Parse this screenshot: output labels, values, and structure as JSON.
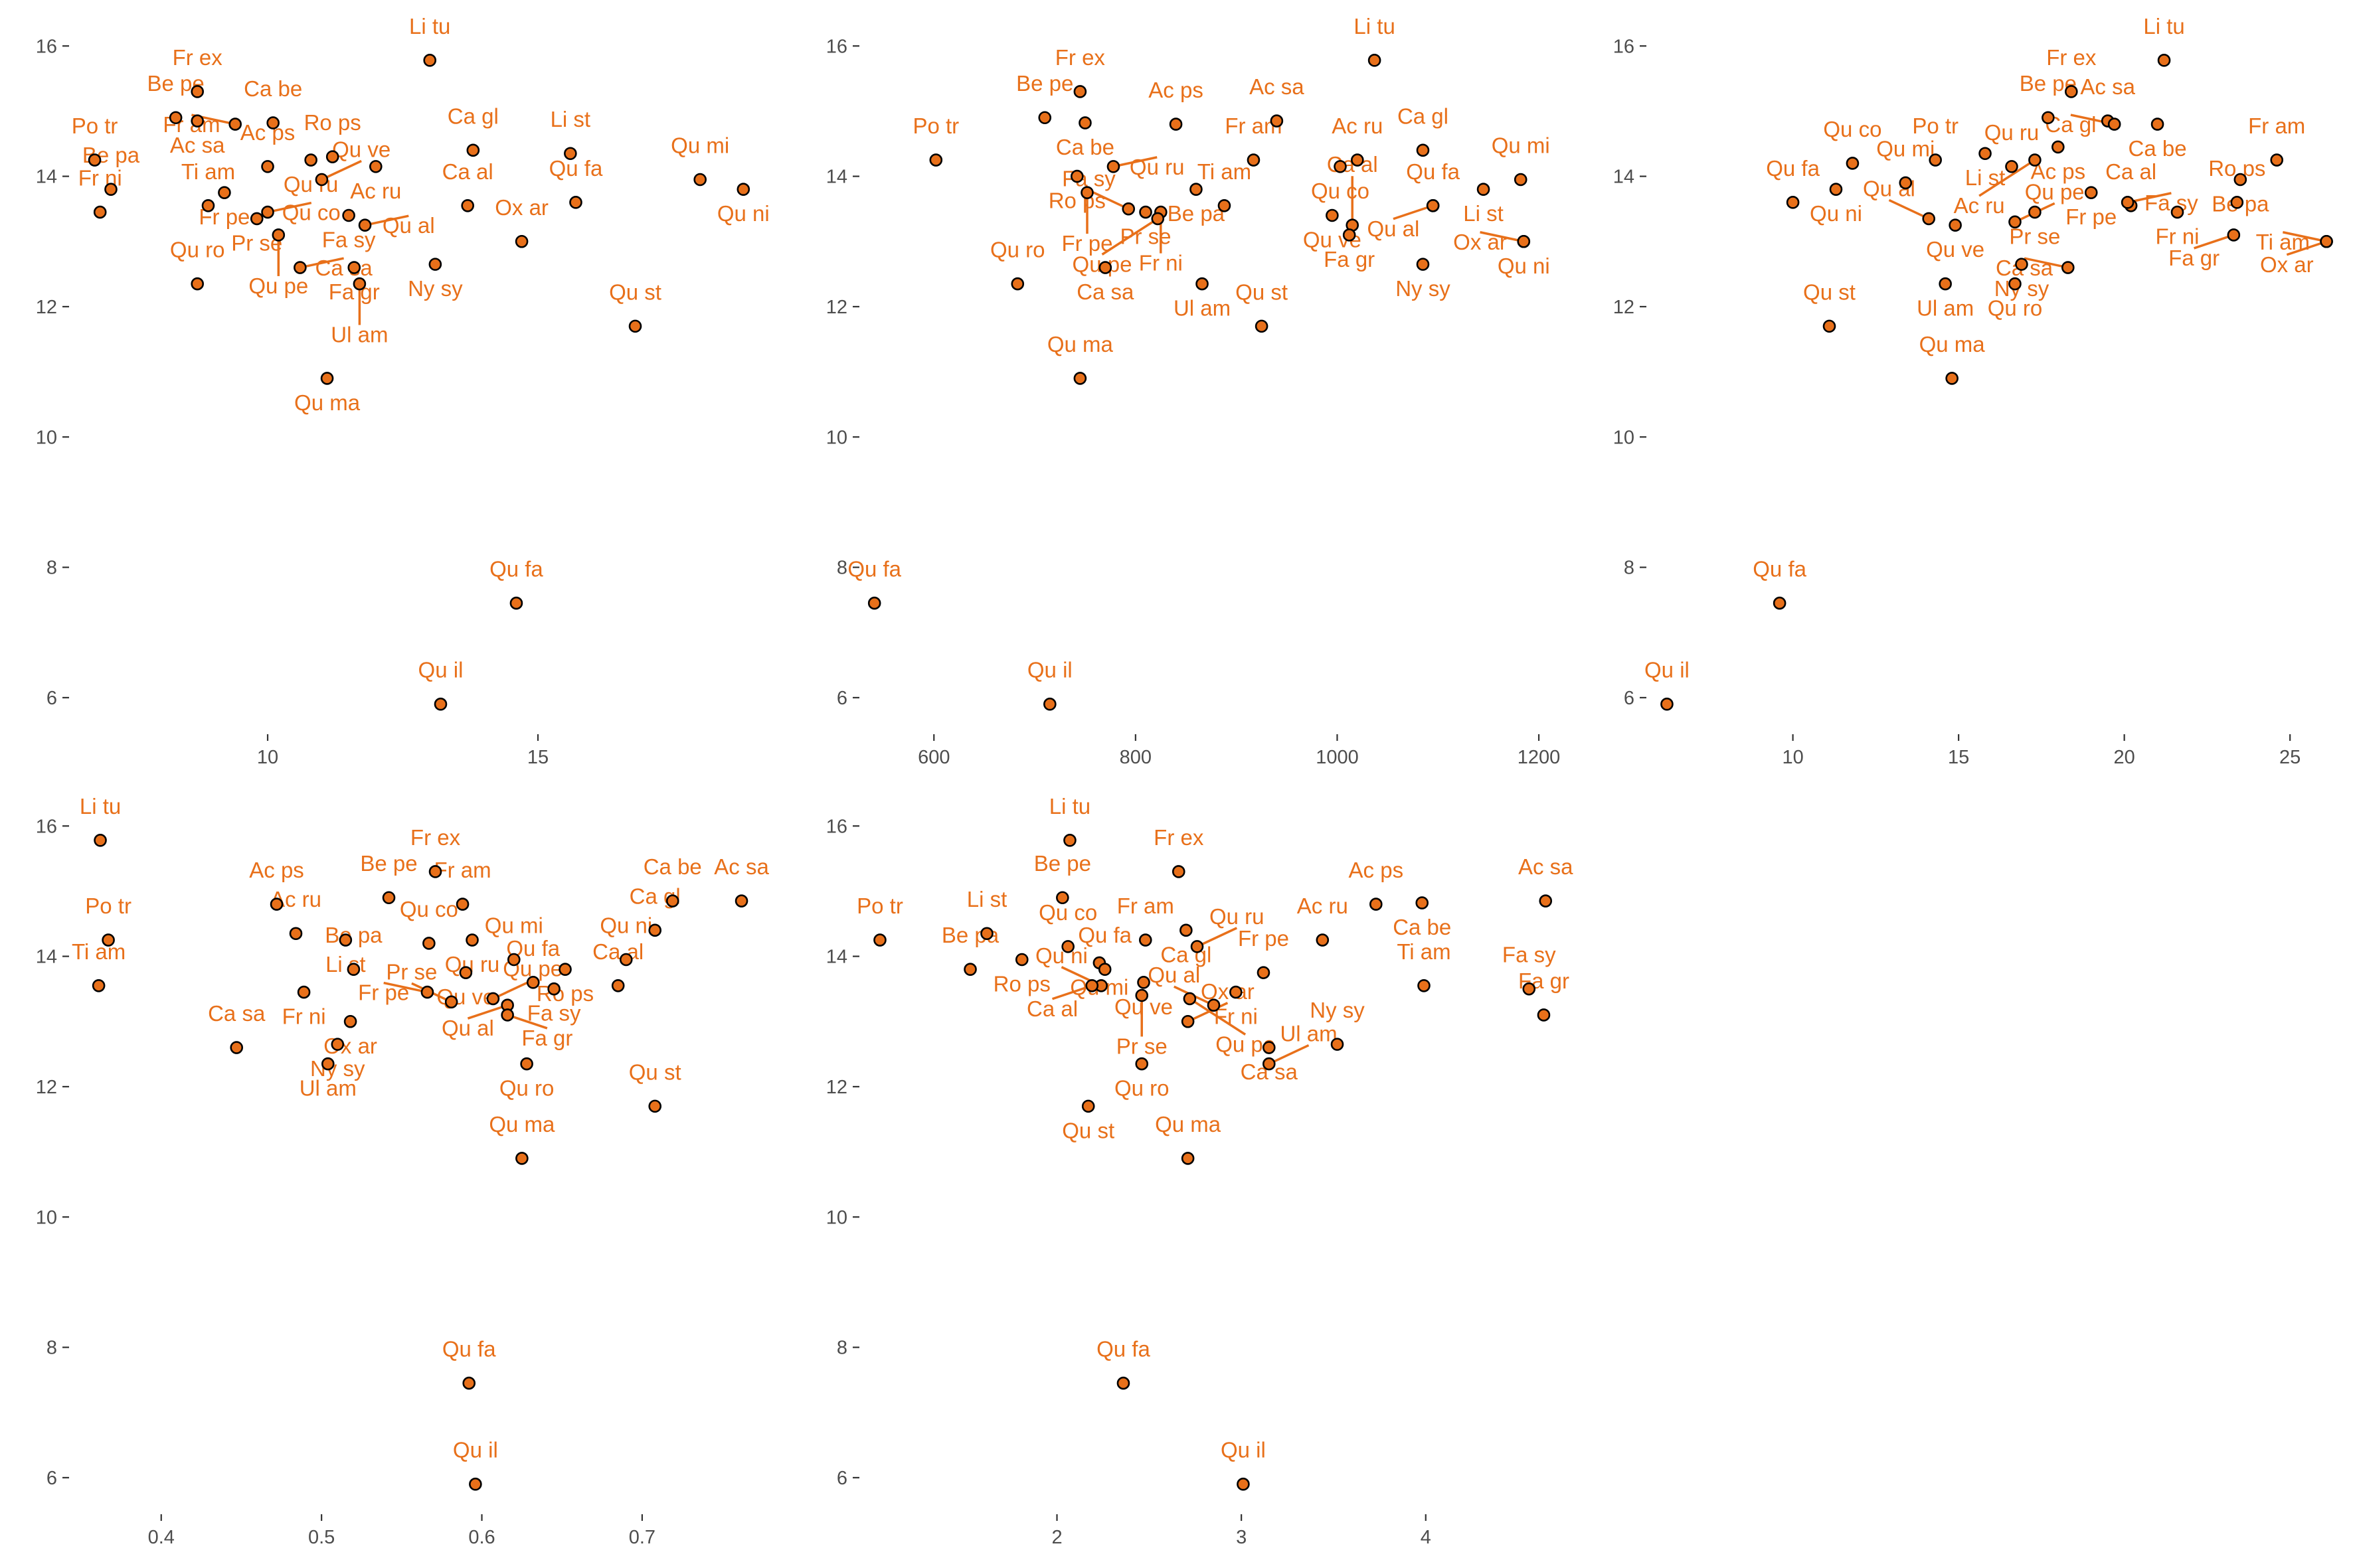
{
  "colors": {
    "point_fill": "#e8701a",
    "point_stroke": "#000000",
    "label": "#e8701a",
    "axis_text": "#4d4d4d",
    "background": "#ffffff"
  },
  "chart_data": [
    {
      "type": "scatter",
      "title": "",
      "xlabel": "",
      "ylabel": "",
      "xlim": [
        6.4,
        19.3
      ],
      "ylim": [
        5.5,
        16.4
      ],
      "xticks": [
        10,
        15
      ],
      "yticks": [
        6,
        8,
        10,
        12,
        14,
        16
      ],
      "points": [
        {
          "label": "Li tu",
          "x": 13.0,
          "y": 15.78
        },
        {
          "label": "Fr ex",
          "x": 8.7,
          "y": 15.3
        },
        {
          "label": "Ca be",
          "x": 10.1,
          "y": 14.82
        },
        {
          "label": "Be pe",
          "x": 8.3,
          "y": 14.9
        },
        {
          "label": "Ac sa",
          "x": 8.7,
          "y": 14.85
        },
        {
          "label": "Fr am",
          "x": 9.4,
          "y": 14.8
        },
        {
          "label": "Po tr",
          "x": 6.8,
          "y": 14.25
        },
        {
          "label": "Ca gl",
          "x": 13.8,
          "y": 14.4
        },
        {
          "label": "Li st",
          "x": 15.6,
          "y": 14.35
        },
        {
          "label": "Qu mi",
          "x": 18.0,
          "y": 13.95
        },
        {
          "label": "Qu ni",
          "x": 18.8,
          "y": 13.8
        },
        {
          "label": "Qu fa",
          "x": 15.7,
          "y": 13.6
        },
        {
          "label": "Be pa",
          "x": 7.1,
          "y": 13.8
        },
        {
          "label": "Fr ni",
          "x": 6.9,
          "y": 13.45
        },
        {
          "label": "Ac ps",
          "x": 10.0,
          "y": 14.15
        },
        {
          "label": "Qu ru",
          "x": 10.8,
          "y": 14.25
        },
        {
          "label": "Ro ps",
          "x": 11.2,
          "y": 14.3
        },
        {
          "label": "Ac ru",
          "x": 12.0,
          "y": 14.15
        },
        {
          "label": "Fr pe",
          "x": 9.2,
          "y": 13.75
        },
        {
          "label": "Pr se",
          "x": 9.8,
          "y": 13.35
        },
        {
          "label": "Ti am",
          "x": 8.9,
          "y": 13.55
        },
        {
          "label": "Qu co",
          "x": 10.0,
          "y": 13.45
        },
        {
          "label": "Qu ve",
          "x": 11.0,
          "y": 13.95
        },
        {
          "label": "Fa sy",
          "x": 11.5,
          "y": 13.4
        },
        {
          "label": "Qu al",
          "x": 11.8,
          "y": 13.25
        },
        {
          "label": "Ca al",
          "x": 13.7,
          "y": 13.55
        },
        {
          "label": "Qu pe",
          "x": 10.2,
          "y": 13.1
        },
        {
          "label": "Ox ar",
          "x": 14.7,
          "y": 13.0
        },
        {
          "label": "Fa gr",
          "x": 11.6,
          "y": 12.6
        },
        {
          "label": "Ca sa",
          "x": 10.6,
          "y": 12.6
        },
        {
          "label": "Ny sy",
          "x": 13.1,
          "y": 12.65
        },
        {
          "label": "Qu ro",
          "x": 8.7,
          "y": 12.35
        },
        {
          "label": "Ul am",
          "x": 11.7,
          "y": 12.35
        },
        {
          "label": "Qu st",
          "x": 16.8,
          "y": 11.7
        },
        {
          "label": "Qu ma",
          "x": 11.1,
          "y": 10.9
        },
        {
          "label": "Qu fa",
          "x": 14.6,
          "y": 7.45
        },
        {
          "label": "Qu il",
          "x": 13.2,
          "y": 5.9
        }
      ]
    },
    {
      "type": "scatter",
      "title": "",
      "xlabel": "",
      "ylabel": "",
      "xlim": [
        530,
        1225
      ],
      "ylim": [
        5.5,
        16.4
      ],
      "xticks": [
        600,
        800,
        1000,
        1200
      ],
      "yticks": [
        6,
        8,
        10,
        12,
        14,
        16
      ],
      "points": [
        {
          "label": "Li tu",
          "x": 1037,
          "y": 15.78
        },
        {
          "label": "Fr ex",
          "x": 745,
          "y": 15.3
        },
        {
          "label": "Ca gl",
          "x": 1085,
          "y": 14.4
        },
        {
          "label": "Ac sa",
          "x": 940,
          "y": 14.85
        },
        {
          "label": "Ac ps",
          "x": 840,
          "y": 14.8
        },
        {
          "label": "Be pe",
          "x": 710,
          "y": 14.9
        },
        {
          "label": "Ca be",
          "x": 750,
          "y": 14.82
        },
        {
          "label": "Qu mi",
          "x": 1182,
          "y": 13.95
        },
        {
          "label": "Po tr",
          "x": 602,
          "y": 14.25
        },
        {
          "label": "Ro ps",
          "x": 742,
          "y": 14.0
        },
        {
          "label": "Qu ru",
          "x": 778,
          "y": 14.15
        },
        {
          "label": "Fr am",
          "x": 917,
          "y": 14.25
        },
        {
          "label": "Ac ru",
          "x": 1020,
          "y": 14.25
        },
        {
          "label": "Li st",
          "x": 1145,
          "y": 13.8
        },
        {
          "label": "Qu fa",
          "x": 1095,
          "y": 13.55
        },
        {
          "label": "Be pa",
          "x": 860,
          "y": 13.8
        },
        {
          "label": "Qu co",
          "x": 1003,
          "y": 14.15
        },
        {
          "label": "Fr pe",
          "x": 752,
          "y": 13.75
        },
        {
          "label": "Fa sy",
          "x": 793,
          "y": 13.5
        },
        {
          "label": "Qu al",
          "x": 1095,
          "y": 13.55
        },
        {
          "label": "Qu ni",
          "x": 1185,
          "y": 13.0
        },
        {
          "label": "Pr se",
          "x": 810,
          "y": 13.45
        },
        {
          "label": "Fr ni",
          "x": 825,
          "y": 13.45
        },
        {
          "label": "Qu ve",
          "x": 995,
          "y": 13.4
        },
        {
          "label": "Ti am",
          "x": 888,
          "y": 13.55
        },
        {
          "label": "Ca al",
          "x": 1015,
          "y": 13.25
        },
        {
          "label": "Qu pe",
          "x": 822,
          "y": 13.35
        },
        {
          "label": "Fa gr",
          "x": 1012,
          "y": 13.1
        },
        {
          "label": "Ny sy",
          "x": 1085,
          "y": 12.65
        },
        {
          "label": "Ox ar",
          "x": 1185,
          "y": 13.0
        },
        {
          "label": "Ca sa",
          "x": 770,
          "y": 12.6
        },
        {
          "label": "Qu ro",
          "x": 683,
          "y": 12.35
        },
        {
          "label": "Ul am",
          "x": 866,
          "y": 12.35
        },
        {
          "label": "Qu st",
          "x": 925,
          "y": 11.7
        },
        {
          "label": "Qu ma",
          "x": 745,
          "y": 10.9
        },
        {
          "label": "Qu fa",
          "x": 541,
          "y": 7.45
        },
        {
          "label": "Qu il",
          "x": 715,
          "y": 5.9
        }
      ]
    },
    {
      "type": "scatter",
      "title": "",
      "xlabel": "",
      "ylabel": "",
      "xlim": [
        5.7,
        26.9
      ],
      "ylim": [
        5.5,
        16.4
      ],
      "xticks": [
        10,
        15,
        20,
        25
      ],
      "yticks": [
        6,
        8,
        10,
        12,
        14,
        16
      ],
      "points": [
        {
          "label": "Li tu",
          "x": 21.2,
          "y": 15.78
        },
        {
          "label": "Fr ex",
          "x": 18.4,
          "y": 15.3
        },
        {
          "label": "Be pe",
          "x": 17.7,
          "y": 14.9
        },
        {
          "label": "Ac sa",
          "x": 19.5,
          "y": 14.85
        },
        {
          "label": "Ca be",
          "x": 21.0,
          "y": 14.8
        },
        {
          "label": "Ca gl",
          "x": 19.7,
          "y": 14.8
        },
        {
          "label": "Fr am",
          "x": 24.6,
          "y": 14.25
        },
        {
          "label": "Qu co",
          "x": 11.8,
          "y": 14.2
        },
        {
          "label": "Po tr",
          "x": 14.3,
          "y": 14.25
        },
        {
          "label": "Li st",
          "x": 15.8,
          "y": 14.35
        },
        {
          "label": "Ac ps",
          "x": 18.0,
          "y": 14.45
        },
        {
          "label": "Be pa",
          "x": 23.5,
          "y": 13.95
        },
        {
          "label": "Fr pe",
          "x": 19.0,
          "y": 13.75
        },
        {
          "label": "Qu mi",
          "x": 13.4,
          "y": 13.9
        },
        {
          "label": "Qu ru",
          "x": 16.6,
          "y": 14.15
        },
        {
          "label": "Ro ps",
          "x": 23.4,
          "y": 13.6
        },
        {
          "label": "Ac ru",
          "x": 17.3,
          "y": 14.25
        },
        {
          "label": "Ca al",
          "x": 20.2,
          "y": 13.55
        },
        {
          "label": "Qu fa",
          "x": 10.0,
          "y": 13.6
        },
        {
          "label": "Qu ni",
          "x": 11.3,
          "y": 13.8
        },
        {
          "label": "Qu ve",
          "x": 14.9,
          "y": 13.25
        },
        {
          "label": "Pr se",
          "x": 17.3,
          "y": 13.45
        },
        {
          "label": "Ti am",
          "x": 26.1,
          "y": 13.0
        },
        {
          "label": "Fr ni",
          "x": 21.6,
          "y": 13.45
        },
        {
          "label": "Qu al",
          "x": 14.1,
          "y": 13.35
        },
        {
          "label": "Qu pe",
          "x": 16.7,
          "y": 13.3
        },
        {
          "label": "Fa sy",
          "x": 20.1,
          "y": 13.6
        },
        {
          "label": "Fa gr",
          "x": 23.3,
          "y": 13.1
        },
        {
          "label": "Ox ar",
          "x": 26.1,
          "y": 13.0
        },
        {
          "label": "Ny sy",
          "x": 16.9,
          "y": 12.65
        },
        {
          "label": "Ca sa",
          "x": 18.3,
          "y": 12.6
        },
        {
          "label": "Ul am",
          "x": 14.6,
          "y": 12.35
        },
        {
          "label": "Qu ro",
          "x": 16.7,
          "y": 12.35
        },
        {
          "label": "Qu st",
          "x": 11.1,
          "y": 11.7
        },
        {
          "label": "Qu ma",
          "x": 14.8,
          "y": 10.9
        },
        {
          "label": "Qu fa",
          "x": 9.6,
          "y": 7.45
        },
        {
          "label": "Qu il",
          "x": 6.2,
          "y": 5.9
        }
      ]
    },
    {
      "type": "scatter",
      "title": "",
      "xlabel": "",
      "ylabel": "",
      "xlim": [
        0.345,
        0.78
      ],
      "ylim": [
        5.5,
        16.4
      ],
      "xticks": [
        0.4,
        0.5,
        0.6,
        0.7
      ],
      "yticks": [
        6,
        8,
        10,
        12,
        14,
        16
      ],
      "points": [
        {
          "label": "Li tu",
          "x": 0.362,
          "y": 15.78
        },
        {
          "label": "Fr ex",
          "x": 0.571,
          "y": 15.3
        },
        {
          "label": "Ac ps",
          "x": 0.472,
          "y": 14.8
        },
        {
          "label": "Be pe",
          "x": 0.542,
          "y": 14.9
        },
        {
          "label": "Fr am",
          "x": 0.588,
          "y": 14.8
        },
        {
          "label": "Ca be",
          "x": 0.719,
          "y": 14.85
        },
        {
          "label": "Ac sa",
          "x": 0.762,
          "y": 14.85
        },
        {
          "label": "Ca gl",
          "x": 0.708,
          "y": 14.4
        },
        {
          "label": "Ac ru",
          "x": 0.484,
          "y": 14.35
        },
        {
          "label": "Li st",
          "x": 0.515,
          "y": 14.25
        },
        {
          "label": "Qu co",
          "x": 0.567,
          "y": 14.2
        },
        {
          "label": "Po tr",
          "x": 0.367,
          "y": 14.25
        },
        {
          "label": "Qu mi",
          "x": 0.62,
          "y": 13.95
        },
        {
          "label": "Qu fa",
          "x": 0.632,
          "y": 13.6
        },
        {
          "label": "Qu ni",
          "x": 0.69,
          "y": 13.95
        },
        {
          "label": "Qu ru",
          "x": 0.594,
          "y": 14.25
        },
        {
          "label": "Ro ps",
          "x": 0.652,
          "y": 13.8
        },
        {
          "label": "Ti am",
          "x": 0.361,
          "y": 13.55
        },
        {
          "label": "Fr ni",
          "x": 0.489,
          "y": 13.45
        },
        {
          "label": "Qu ve",
          "x": 0.59,
          "y": 13.75
        },
        {
          "label": "Fa sy",
          "x": 0.645,
          "y": 13.5
        },
        {
          "label": "Ca al",
          "x": 0.685,
          "y": 13.55
        },
        {
          "label": "Be pa",
          "x": 0.52,
          "y": 13.8
        },
        {
          "label": "Fr pe",
          "x": 0.566,
          "y": 13.45
        },
        {
          "label": "Qu al",
          "x": 0.616,
          "y": 13.25
        },
        {
          "label": "Ca sa",
          "x": 0.447,
          "y": 12.6
        },
        {
          "label": "Ny sy",
          "x": 0.51,
          "y": 12.65
        },
        {
          "label": "Ox ar",
          "x": 0.518,
          "y": 13.0
        },
        {
          "label": "Qu pe",
          "x": 0.607,
          "y": 13.35
        },
        {
          "label": "Fa gr",
          "x": 0.616,
          "y": 13.1
        },
        {
          "label": "Ul am",
          "x": 0.504,
          "y": 12.35
        },
        {
          "label": "Pr se",
          "x": 0.581,
          "y": 13.3
        },
        {
          "label": "Qu ro",
          "x": 0.628,
          "y": 12.35
        },
        {
          "label": "Qu st",
          "x": 0.708,
          "y": 11.7
        },
        {
          "label": "Qu ma",
          "x": 0.625,
          "y": 10.9
        },
        {
          "label": "Qu fa",
          "x": 0.592,
          "y": 7.45
        },
        {
          "label": "Qu il",
          "x": 0.596,
          "y": 5.9
        }
      ]
    },
    {
      "type": "scatter",
      "title": "",
      "xlabel": "",
      "ylabel": "",
      "xlim": [
        0.95,
        4.75
      ],
      "ylim": [
        5.5,
        16.4
      ],
      "xticks": [
        2,
        3,
        4
      ],
      "yticks": [
        6,
        8,
        10,
        12,
        14,
        16
      ],
      "points": [
        {
          "label": "Li tu",
          "x": 2.07,
          "y": 15.78
        },
        {
          "label": "Fr ex",
          "x": 2.66,
          "y": 15.3
        },
        {
          "label": "Be pe",
          "x": 2.03,
          "y": 14.9
        },
        {
          "label": "Fr am",
          "x": 2.48,
          "y": 14.25
        },
        {
          "label": "Ca gl",
          "x": 2.7,
          "y": 14.4
        },
        {
          "label": "Ac ps",
          "x": 3.73,
          "y": 14.8
        },
        {
          "label": "Ca be",
          "x": 3.98,
          "y": 14.82
        },
        {
          "label": "Ac sa",
          "x": 4.65,
          "y": 14.85
        },
        {
          "label": "Ac ru",
          "x": 3.44,
          "y": 14.25
        },
        {
          "label": "Li st",
          "x": 1.62,
          "y": 14.35
        },
        {
          "label": "Po tr",
          "x": 1.04,
          "y": 14.25
        },
        {
          "label": "Qu co",
          "x": 2.06,
          "y": 14.15
        },
        {
          "label": "Qu mi",
          "x": 2.23,
          "y": 13.9
        },
        {
          "label": "Qu ru",
          "x": 2.76,
          "y": 14.15
        },
        {
          "label": "Qu fa",
          "x": 2.26,
          "y": 13.8
        },
        {
          "label": "Ro ps",
          "x": 1.81,
          "y": 13.95
        },
        {
          "label": "Be pa",
          "x": 1.53,
          "y": 13.8
        },
        {
          "label": "Fr pe",
          "x": 3.12,
          "y": 13.75
        },
        {
          "label": "Qu ve",
          "x": 2.47,
          "y": 13.6
        },
        {
          "label": "Fr ni",
          "x": 2.97,
          "y": 13.45
        },
        {
          "label": "Qu ni",
          "x": 2.24,
          "y": 13.55
        },
        {
          "label": "Ti am",
          "x": 3.99,
          "y": 13.55
        },
        {
          "label": "Fa sy",
          "x": 4.56,
          "y": 13.5
        },
        {
          "label": "Ca al",
          "x": 2.19,
          "y": 13.55
        },
        {
          "label": "Pr se",
          "x": 2.46,
          "y": 13.4
        },
        {
          "label": "Qu pe",
          "x": 2.72,
          "y": 13.35
        },
        {
          "label": "Qu al",
          "x": 2.85,
          "y": 13.25
        },
        {
          "label": "Fa gr",
          "x": 4.64,
          "y": 13.1
        },
        {
          "label": "Ox ar",
          "x": 2.71,
          "y": 13.0
        },
        {
          "label": "Ca sa",
          "x": 3.15,
          "y": 12.6
        },
        {
          "label": "Ny sy",
          "x": 3.52,
          "y": 12.65
        },
        {
          "label": "Qu ro",
          "x": 2.46,
          "y": 12.35
        },
        {
          "label": "Ul am",
          "x": 3.15,
          "y": 12.35
        },
        {
          "label": "Qu st",
          "x": 2.17,
          "y": 11.7
        },
        {
          "label": "Qu ma",
          "x": 2.71,
          "y": 10.9
        },
        {
          "label": "Qu fa",
          "x": 2.36,
          "y": 7.45
        },
        {
          "label": "Qu il",
          "x": 3.01,
          "y": 5.9
        }
      ]
    }
  ]
}
